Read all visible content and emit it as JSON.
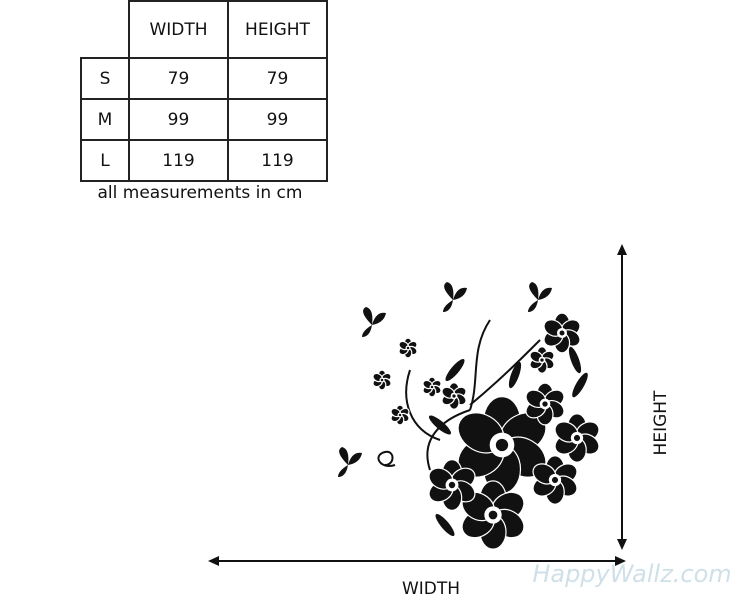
{
  "table": {
    "header": [
      "WIDTH",
      "HEIGHT"
    ],
    "rows": [
      [
        "S",
        79,
        79
      ],
      [
        "M",
        99,
        99
      ],
      [
        "L",
        119,
        119
      ]
    ]
  },
  "note": "all measurements in cm",
  "diagram": {
    "width_label": "WIDTH",
    "height_label": "HEIGHT"
  },
  "watermark": "HappyWallz.com"
}
